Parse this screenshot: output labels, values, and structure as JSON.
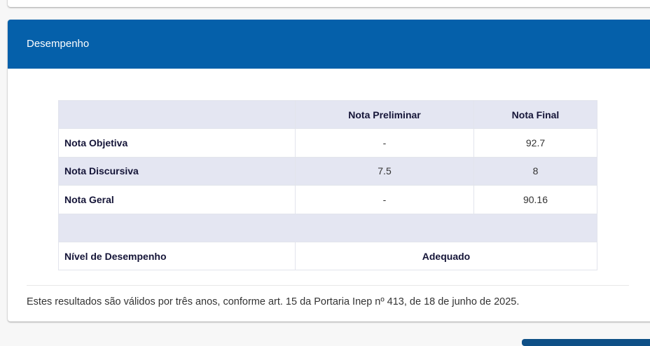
{
  "card": {
    "title": "Desempenho"
  },
  "table": {
    "headers": [
      "",
      "Nota Preliminar",
      "Nota Final"
    ],
    "rows": [
      {
        "label": "Nota Objetiva",
        "preliminar": "-",
        "final": "92.7"
      },
      {
        "label": "Nota Discursiva",
        "preliminar": "7.5",
        "final": "8"
      },
      {
        "label": "Nota Geral",
        "preliminar": "-",
        "final": "90.16"
      }
    ],
    "nivel": {
      "label": "Nível de Desempenho",
      "value": "Adequado"
    }
  },
  "footnote": "Estes resultados são válidos por três anos, conforme art. 15 da Portaria Inep nº 413, de 18 de junho de 2025.",
  "colors": {
    "header": "#0560aa",
    "row_alt": "#e4e6f2"
  }
}
